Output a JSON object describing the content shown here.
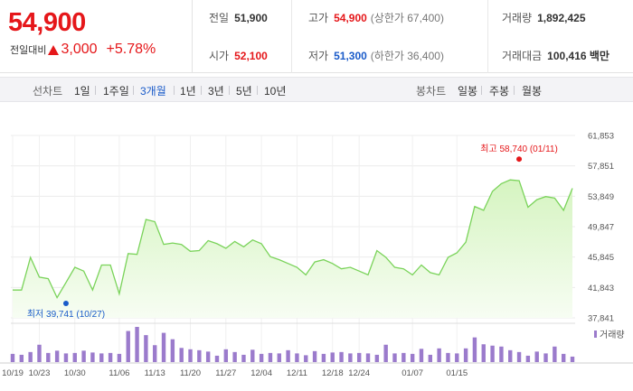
{
  "summary": {
    "price": "54,900",
    "change_label": "전일대비",
    "change_amount": "3,000",
    "change_percent": "+5.78%",
    "prev_close_label": "전일",
    "prev_close": "51,900",
    "high_label": "고가",
    "high": "54,900",
    "upper_limit": "(상한가 67,400)",
    "volume_label": "거래량",
    "volume": "1,892,425",
    "open_label": "시가",
    "open": "52,100",
    "low_label": "저가",
    "low": "51,300",
    "lower_limit": "(하한가 36,400)",
    "value_label": "거래대금",
    "value": "100,416 백만"
  },
  "period_bar": {
    "line_chart_label": "선차트",
    "line_periods": [
      "1일",
      "1주일",
      "3개월",
      "1년",
      "3년",
      "5년",
      "10년"
    ],
    "active_period": "3개월",
    "candle_chart_label": "봉차트",
    "candle_periods": [
      "일봉",
      "주봉",
      "월봉"
    ]
  },
  "colors": {
    "up": "#e5171a",
    "down": "#1a5bc9",
    "line": "#7ad35a",
    "fill_top": "#d5f4c0",
    "fill_bottom": "#f7fdf3",
    "volume_bar": "#9b7bcc"
  },
  "chart_data": {
    "type": "area",
    "y_ticks": [
      "61,853",
      "57,851",
      "53,849",
      "49,847",
      "45,845",
      "41,843",
      "37,841"
    ],
    "y_tick_values": [
      61853,
      57851,
      53849,
      49847,
      45845,
      41843,
      37841
    ],
    "ylim": [
      37841,
      61853
    ],
    "x_labels": [
      "10/19",
      "10/23",
      "10/30",
      "11/06",
      "11/13",
      "11/20",
      "11/27",
      "12/04",
      "12/11",
      "12/18",
      "12/24",
      "01/07",
      "01/15"
    ],
    "x_label_index": [
      0,
      3,
      7,
      12,
      16,
      20,
      24,
      28,
      32,
      36,
      39,
      45,
      50
    ],
    "values": [
      41500,
      41500,
      45800,
      43200,
      43000,
      40500,
      42500,
      44500,
      44000,
      41500,
      44800,
      44800,
      41000,
      46300,
      46200,
      50800,
      50500,
      47500,
      47700,
      47500,
      46600,
      46700,
      48000,
      47600,
      47000,
      47900,
      47200,
      48100,
      47600,
      45900,
      45500,
      45000,
      44500,
      43500,
      45200,
      45500,
      45000,
      44300,
      44500,
      44000,
      43500,
      46700,
      45800,
      44500,
      44300,
      43500,
      44800,
      43800,
      43500,
      45800,
      46400,
      47800,
      52500,
      52000,
      54500,
      55500,
      56000,
      55900,
      52400,
      53400,
      53800,
      53600,
      52000,
      54900
    ],
    "volume": [
      1.8,
      1.6,
      2.2,
      3.8,
      2.0,
      2.5,
      1.9,
      2.0,
      2.5,
      2.1,
      1.9,
      2.0,
      1.8,
      6.8,
      7.7,
      5.9,
      3.7,
      6.4,
      5.0,
      3.1,
      2.8,
      2.6,
      2.3,
      1.4,
      2.8,
      2.2,
      1.6,
      2.7,
      1.8,
      2.0,
      1.9,
      2.6,
      1.9,
      1.5,
      2.4,
      1.8,
      2.1,
      2.2,
      1.9,
      2.0,
      1.9,
      1.6,
      3.8,
      1.9,
      2.0,
      1.8,
      2.9,
      1.6,
      3.0,
      2.0,
      1.9,
      3.0,
      5.4,
      3.9,
      3.6,
      3.4,
      2.6,
      2.2,
      1.4,
      2.3,
      1.9,
      3.4,
      1.8,
      1.2
    ],
    "max_annotation": "최고 58,740 (01/11)",
    "max_value": 58740,
    "max_index": 57,
    "min_annotation": "최저 39,741 (10/27)",
    "min_value": 39741,
    "min_index": 6,
    "volume_legend": "거래량"
  }
}
